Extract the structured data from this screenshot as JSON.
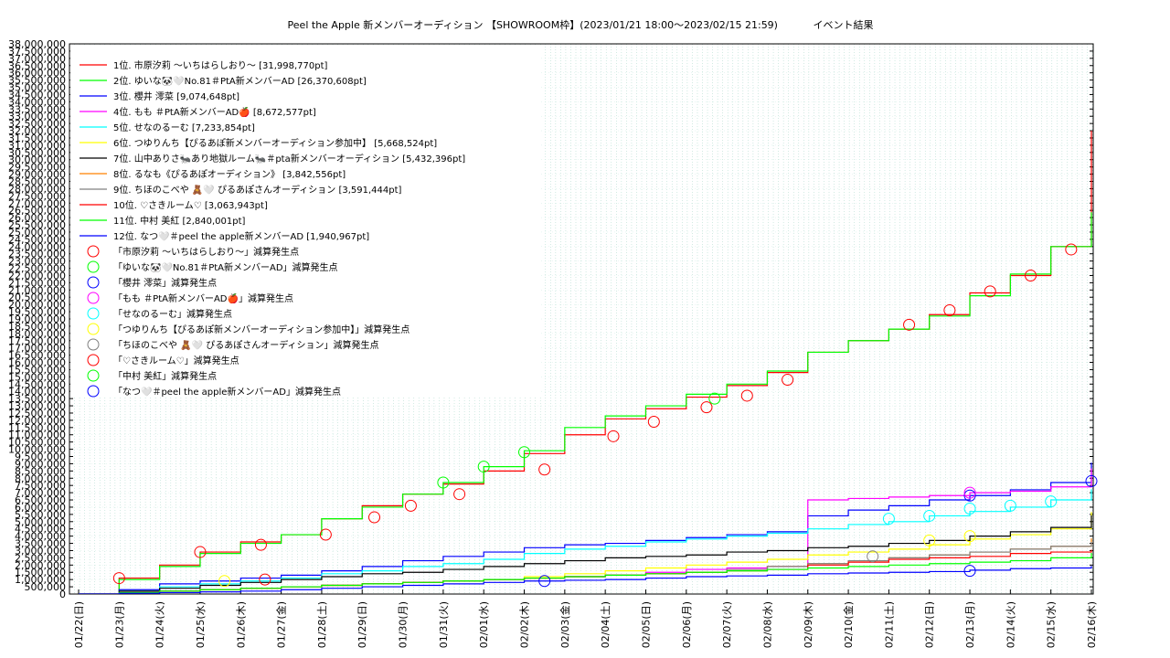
{
  "chart_data": {
    "type": "line",
    "title": "Peel the Apple 新メンバーオーディション 【SHOWROOM枠】(2023/01/21 18:00～2023/02/15 21:59)           イベント結果",
    "xlabel": "",
    "ylabel": "",
    "ylim": [
      0,
      38000000
    ],
    "ytick_step": 500000,
    "categories": [
      "01/22(日)",
      "01/23(月)",
      "01/24(火)",
      "01/25(水)",
      "01/26(木)",
      "01/27(金)",
      "01/28(土)",
      "01/29(日)",
      "01/30(月)",
      "01/31(火)",
      "02/01(水)",
      "02/02(木)",
      "02/03(金)",
      "02/04(土)",
      "02/05(日)",
      "02/06(月)",
      "02/07(火)",
      "02/08(水)",
      "02/09(木)",
      "02/10(金)",
      "02/11(土)",
      "02/12(日)",
      "02/13(月)",
      "02/14(火)",
      "02/15(水)",
      "02/16(木)"
    ],
    "grid": true,
    "legend_position": "top-left",
    "series": [
      {
        "name": "1位. 市原汐莉 〜いちはらしおり〜 [31,998,770pt]",
        "color": "#ff0000",
        "values": [
          0,
          1100000,
          2000000,
          2900000,
          3600000,
          4100000,
          5200000,
          6100000,
          6900000,
          7600000,
          8500000,
          9700000,
          11000000,
          12100000,
          12800000,
          13600000,
          14400000,
          15300000,
          16700000,
          17500000,
          18300000,
          19300000,
          20800000,
          22000000,
          24000000,
          31998770
        ]
      },
      {
        "name": "2位. ゆいな🐼🤍No.81＃PtA新メンバーAD [26,370,608pt]",
        "color": "#00ff00",
        "values": [
          0,
          1000000,
          1900000,
          2800000,
          3500000,
          4100000,
          5200000,
          6000000,
          6900000,
          7700000,
          8800000,
          9900000,
          11500000,
          12300000,
          13000000,
          13800000,
          14500000,
          15400000,
          16700000,
          17500000,
          18300000,
          19200000,
          20600000,
          22100000,
          24000000,
          26370608
        ]
      },
      {
        "name": "3位. 櫻井 澪菜 [9,074,648pt]",
        "color": "#0000ff",
        "values": [
          0,
          300000,
          700000,
          900000,
          1100000,
          1300000,
          1600000,
          1900000,
          2300000,
          2600000,
          2900000,
          3200000,
          3400000,
          3500000,
          3700000,
          3900000,
          4100000,
          4300000,
          5400000,
          5800000,
          6100000,
          6500000,
          6800000,
          7200000,
          7700000,
          9074648
        ]
      },
      {
        "name": "4位. もも ＃PtA新メンバーAD🍎 [8,672,577pt]",
        "color": "#ff00ff",
        "values": [
          0,
          100000,
          200000,
          300000,
          400000,
          500000,
          600000,
          700000,
          800000,
          900000,
          1000000,
          1100000,
          1200000,
          1300000,
          1500000,
          1700000,
          1800000,
          1900000,
          6500000,
          6600000,
          6700000,
          6800000,
          7000000,
          7100000,
          7400000,
          8672577
        ]
      },
      {
        "name": "5位. せなのるーむ [7,233,854pt]",
        "color": "#00ffff",
        "values": [
          0,
          200000,
          500000,
          700000,
          900000,
          1100000,
          1400000,
          1600000,
          1900000,
          2100000,
          2400000,
          2800000,
          3100000,
          3300000,
          3600000,
          3800000,
          4000000,
          4200000,
          4500000,
          4800000,
          5000000,
          5400000,
          5700000,
          6000000,
          6500000,
          7233854
        ]
      },
      {
        "name": "6位. つゆりんち【ぴるあぽ新メンバーオーディション参加中】 [5,668,524pt]",
        "color": "#ffff00",
        "values": [
          0,
          100000,
          200000,
          300000,
          400000,
          500000,
          600000,
          700000,
          800000,
          900000,
          1000000,
          1200000,
          1400000,
          1600000,
          1800000,
          2000000,
          2200000,
          2400000,
          2700000,
          2900000,
          3100000,
          3400000,
          3800000,
          4100000,
          4500000,
          5668524
        ]
      },
      {
        "name": "7位. 山中ありさ🐜あり地獄ルーム🐜＃pta新メンバーオーディション [5,432,396pt]",
        "color": "#000000",
        "values": [
          0,
          200000,
          400000,
          600000,
          800000,
          1000000,
          1200000,
          1400000,
          1500000,
          1700000,
          1900000,
          2100000,
          2300000,
          2500000,
          2600000,
          2700000,
          2900000,
          3000000,
          3200000,
          3300000,
          3500000,
          3700000,
          4000000,
          4300000,
          4600000,
          5432396
        ]
      },
      {
        "name": "8位. るなも《ぴるあぽオーディション》 [3,842,556pt]",
        "color": "#ff8000",
        "values": [
          0,
          100000,
          200000,
          300000,
          400000,
          500000,
          600000,
          700000,
          800000,
          900000,
          1000000,
          1100000,
          1200000,
          1300000,
          1400000,
          1500000,
          1700000,
          1900000,
          2100000,
          2300000,
          2500000,
          2700000,
          2900000,
          3100000,
          3300000,
          3842556
        ]
      },
      {
        "name": "9位. ちほのこべや 🧸🤍 ぴるあぽさんオーディション [3,591,444pt]",
        "color": "#808080",
        "values": [
          0,
          100000,
          200000,
          300000,
          400000,
          500000,
          600000,
          700000,
          800000,
          900000,
          1000000,
          1100000,
          1200000,
          1300000,
          1400000,
          1500000,
          1700000,
          1900000,
          2100000,
          2300000,
          2500000,
          2700000,
          2900000,
          3100000,
          3300000,
          3591444
        ]
      },
      {
        "name": "10位. ♡さきルーム♡ [3,063,943pt]",
        "color": "#ff0000",
        "values": [
          0,
          100000,
          200000,
          300000,
          400000,
          500000,
          600000,
          700000,
          800000,
          900000,
          1000000,
          1100000,
          1200000,
          1300000,
          1400000,
          1500000,
          1600000,
          1700000,
          2000000,
          2200000,
          2400000,
          2500000,
          2600000,
          2800000,
          2900000,
          3063943
        ]
      },
      {
        "name": "11位. 中村 美紅 [2,840,001pt]",
        "color": "#00ff00",
        "values": [
          0,
          100000,
          200000,
          300000,
          400000,
          500000,
          600000,
          700000,
          800000,
          900000,
          1000000,
          1100000,
          1200000,
          1300000,
          1400000,
          1500000,
          1600000,
          1700000,
          1800000,
          1900000,
          2000000,
          2100000,
          2200000,
          2300000,
          2500000,
          2840001
        ]
      },
      {
        "name": "12位. なつ🤍＃peel the apple新メンバーAD [1,940,967pt]",
        "color": "#0000ff",
        "values": [
          0,
          50000,
          100000,
          150000,
          200000,
          300000,
          400000,
          500000,
          600000,
          700000,
          800000,
          900000,
          950000,
          1000000,
          1100000,
          1200000,
          1250000,
          1300000,
          1400000,
          1450000,
          1500000,
          1550000,
          1650000,
          1750000,
          1800000,
          1940967
        ]
      }
    ],
    "deduction_points": [
      {
        "name": "「市原汐莉 〜いちはらしおり〜」減算発生点",
        "color": "#ff0000",
        "points": [
          [
            1.0,
            1100000
          ],
          [
            3.0,
            2900000
          ],
          [
            4.5,
            3400000
          ],
          [
            6.1,
            4100000
          ],
          [
            7.3,
            5300000
          ],
          [
            8.2,
            6100000
          ],
          [
            9.4,
            6900000
          ],
          [
            11.5,
            8600000
          ],
          [
            13.2,
            10900000
          ],
          [
            14.2,
            11900000
          ],
          [
            15.5,
            12900000
          ],
          [
            16.5,
            13700000
          ],
          [
            17.5,
            14800000
          ],
          [
            20.5,
            18600000
          ],
          [
            21.5,
            19600000
          ],
          [
            22.5,
            20900000
          ],
          [
            23.5,
            22000000
          ],
          [
            24.5,
            23800000
          ]
        ]
      },
      {
        "name": "「ゆいな🐼🤍No.81＃PtA新メンバーAD」減算発生点",
        "color": "#00ff00",
        "points": [
          [
            9.0,
            7700000
          ],
          [
            10.0,
            8800000
          ],
          [
            11.0,
            9800000
          ],
          [
            15.7,
            13500000
          ]
        ]
      },
      {
        "name": "「櫻井 澪菜」減算発生点",
        "color": "#0000ff",
        "points": [
          [
            22.0,
            6800000
          ],
          [
            25.0,
            7800000
          ]
        ]
      },
      {
        "name": "「もも ＃PtA新メンバーAD🍎」減算発生点",
        "color": "#ff00ff",
        "points": [
          [
            22.0,
            7000000
          ]
        ]
      },
      {
        "name": "「せなのるーむ」減算発生点",
        "color": "#00ffff",
        "points": [
          [
            20.0,
            5200000
          ],
          [
            21.0,
            5400000
          ],
          [
            22.0,
            5900000
          ],
          [
            23.0,
            6100000
          ],
          [
            24.0,
            6400000
          ]
        ]
      },
      {
        "name": "「つゆりんち【ぴるあぽ新メンバーオーディション参加中】」減算発生点",
        "color": "#ffff00",
        "points": [
          [
            3.6,
            900000
          ],
          [
            21.0,
            3700000
          ],
          [
            22.0,
            4000000
          ]
        ]
      },
      {
        "name": "「ちほのこべや 🧸🤍 ぴるあぽさんオーディション」減算発生点",
        "color": "#808080",
        "points": [
          [
            19.6,
            2600000
          ]
        ]
      },
      {
        "name": "「♡さきルーム♡」減算発生点",
        "color": "#ff0000",
        "points": [
          [
            4.6,
            1000000
          ]
        ]
      },
      {
        "name": "「中村 美紅」減算発生点",
        "color": "#00ff00",
        "points": []
      },
      {
        "name": "「なつ🤍＃peel the apple新メンバーAD」減算発生点",
        "color": "#0000ff",
        "points": [
          [
            11.5,
            900000
          ],
          [
            22.0,
            1600000
          ]
        ]
      }
    ]
  }
}
